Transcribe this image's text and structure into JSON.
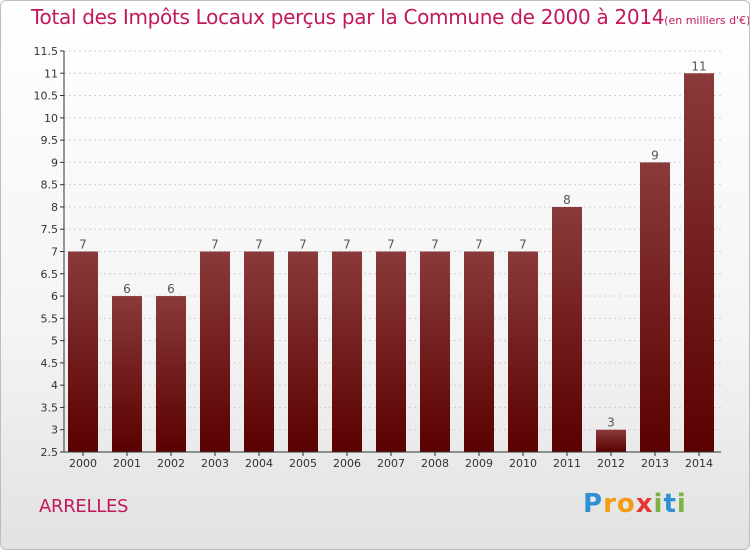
{
  "title": "Total des Impôts Locaux perçus par la Commune de 2000 à 2014",
  "unit_label": "(en milliers d'€)",
  "commune": "ARRELLES",
  "logo": {
    "text": "Proxiti",
    "letters": [
      {
        "ch": "P",
        "color": "#2f8fd3"
      },
      {
        "ch": "r",
        "color": "#f39c12"
      },
      {
        "ch": "o",
        "color": "#f39c12"
      },
      {
        "ch": "x",
        "color": "#e53935"
      },
      {
        "ch": "i",
        "color": "#7cb342"
      },
      {
        "ch": "t",
        "color": "#2f8fd3"
      },
      {
        "ch": "i",
        "color": "#7cb342"
      }
    ]
  },
  "colors": {
    "bar_top": "#8a3a3a",
    "bar_bottom": "#5a0000",
    "title": "#c2185b",
    "grid": "#d0d0d0",
    "axis": "#333333"
  },
  "chart_data": {
    "type": "bar",
    "title": "Total des Impôts Locaux perçus par la Commune de 2000 à 2014",
    "xlabel": "",
    "ylabel": "(en milliers d'€)",
    "categories": [
      "2000",
      "2001",
      "2002",
      "2003",
      "2004",
      "2005",
      "2006",
      "2007",
      "2008",
      "2009",
      "2010",
      "2011",
      "2012",
      "2013",
      "2014"
    ],
    "values": [
      7,
      6,
      6,
      7,
      7,
      7,
      7,
      7,
      7,
      7,
      7,
      8,
      3,
      9,
      11
    ],
    "data_labels": [
      "7",
      "6",
      "6",
      "7",
      "7",
      "7",
      "7",
      "7",
      "7",
      "7",
      "7",
      "8",
      "3",
      "9",
      "11"
    ],
    "ylim": [
      2.5,
      11.5
    ],
    "yticks": [
      2.5,
      3,
      3.5,
      4,
      4.5,
      5,
      5.5,
      6,
      6.5,
      7,
      7.5,
      8,
      8.5,
      9,
      9.5,
      10,
      10.5,
      11,
      11.5
    ],
    "ytick_labels": [
      "2.5",
      "3",
      "3.5",
      "4",
      "4.5",
      "5",
      "5.5",
      "6",
      "6.5",
      "7",
      "7.5",
      "8",
      "8.5",
      "9",
      "9.5",
      "10",
      "10.5",
      "11",
      "11.5"
    ],
    "grid": true
  }
}
